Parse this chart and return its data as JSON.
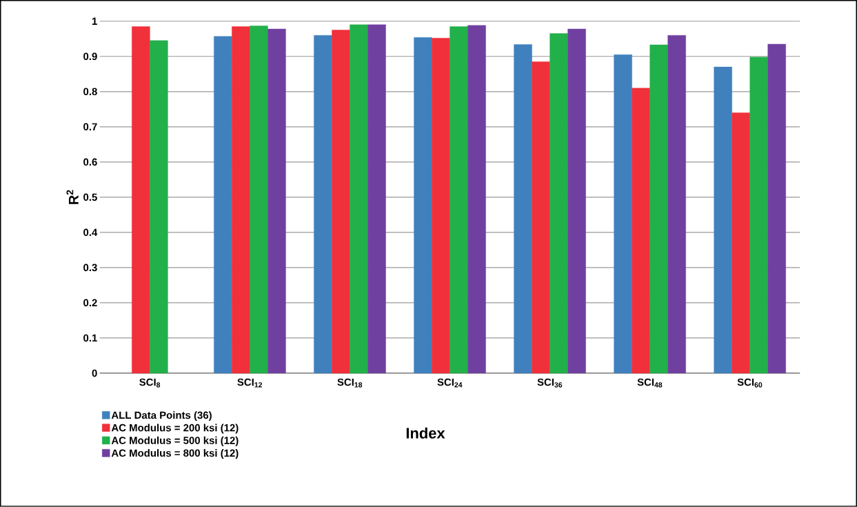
{
  "chart_data": {
    "type": "bar",
    "xlabel": "Index",
    "ylabel": "R$^{2}$",
    "categories": [
      "SCI$_{8}$",
      "SCI$_{12}$",
      "SCI$_{18}$",
      "SCI$_{24}$",
      "SCI$_{36}$",
      "SCI$_{48}$",
      "SCI$_{60}$"
    ],
    "series": [
      {
        "name": "ALL Data Points (36)",
        "color": "#4080bd",
        "values": [
          null,
          0.957,
          0.96,
          0.954,
          0.934,
          0.905,
          0.87
        ]
      },
      {
        "name": "AC Modulus = 200 ksi (12)",
        "color": "#f0303a",
        "values": [
          0.985,
          0.985,
          0.975,
          0.952,
          0.885,
          0.81,
          0.74
        ]
      },
      {
        "name": "AC Modulus = 500 ksi (12)",
        "color": "#22b04a",
        "values": [
          0.945,
          0.987,
          0.99,
          0.985,
          0.965,
          0.933,
          0.898
        ]
      },
      {
        "name": "AC Modulus = 800 ksi (12)",
        "color": "#7040a0",
        "values": [
          null,
          0.978,
          0.99,
          0.988,
          0.978,
          0.96,
          0.935
        ]
      }
    ],
    "ylim": [
      0,
      1
    ],
    "yticks": [
      0,
      0.1,
      0.2,
      0.3,
      0.4,
      0.5,
      0.6,
      0.7,
      0.8,
      0.9,
      1
    ],
    "grid": "y",
    "legend": "bottom left"
  }
}
